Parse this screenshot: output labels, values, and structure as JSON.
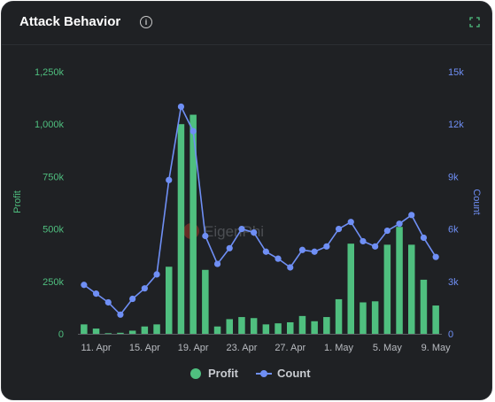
{
  "header": {
    "title": "Attack Behavior",
    "info_icon": "info-icon",
    "expand_icon": "expand-icon",
    "info_glyph": "i"
  },
  "watermark": "EigenPhi",
  "colors": {
    "profit": "#4fbf7f",
    "count": "#6f8ff5",
    "left_axis": "#4fbf7f",
    "right_axis": "#6f8ff5"
  },
  "chart_data": {
    "type": "bar",
    "x_tick_labels": [
      "11. Apr",
      "15. Apr",
      "19. Apr",
      "23. Apr",
      "27. Apr",
      "1. May",
      "5. May",
      "9. May"
    ],
    "x": [
      "2023-04-10",
      "2023-04-11",
      "2023-04-12",
      "2023-04-13",
      "2023-04-14",
      "2023-04-15",
      "2023-04-16",
      "2023-04-17",
      "2023-04-18",
      "2023-04-19",
      "2023-04-20",
      "2023-04-21",
      "2023-04-22",
      "2023-04-23",
      "2023-04-24",
      "2023-04-25",
      "2023-04-26",
      "2023-04-27",
      "2023-04-28",
      "2023-04-29",
      "2023-04-30",
      "2023-05-01",
      "2023-05-02",
      "2023-05-03",
      "2023-05-04",
      "2023-05-05",
      "2023-05-06",
      "2023-05-07",
      "2023-05-08",
      "2023-05-09"
    ],
    "series": [
      {
        "name": "Profit",
        "type": "bar",
        "axis": "left",
        "values": [
          45000,
          25000,
          3000,
          5000,
          15000,
          35000,
          45000,
          320000,
          1000000,
          1045000,
          305000,
          35000,
          70000,
          80000,
          75000,
          45000,
          50000,
          55000,
          85000,
          60000,
          80000,
          165000,
          430000,
          150000,
          155000,
          425000,
          510000,
          425000,
          258000,
          135000
        ]
      },
      {
        "name": "Count",
        "type": "line",
        "axis": "right",
        "values": [
          2800,
          2300,
          1800,
          1100,
          2000,
          2600,
          3400,
          8800,
          13000,
          11600,
          5600,
          4000,
          4900,
          6000,
          5800,
          4700,
          4300,
          3800,
          4800,
          4700,
          5000,
          6000,
          6400,
          5300,
          5000,
          5900,
          6300,
          6800,
          5500,
          4400
        ]
      }
    ],
    "y_left": {
      "label": "Profit",
      "min": 0,
      "max": 1250000,
      "ticks": [
        "0",
        "250k",
        "500k",
        "750k",
        "1,000k",
        "1,250k"
      ]
    },
    "y_right": {
      "label": "Count",
      "min": 0,
      "max": 15000,
      "ticks": [
        "0",
        "3k",
        "6k",
        "9k",
        "12k",
        "15k"
      ]
    },
    "grid": false,
    "legend_position": "bottom"
  }
}
